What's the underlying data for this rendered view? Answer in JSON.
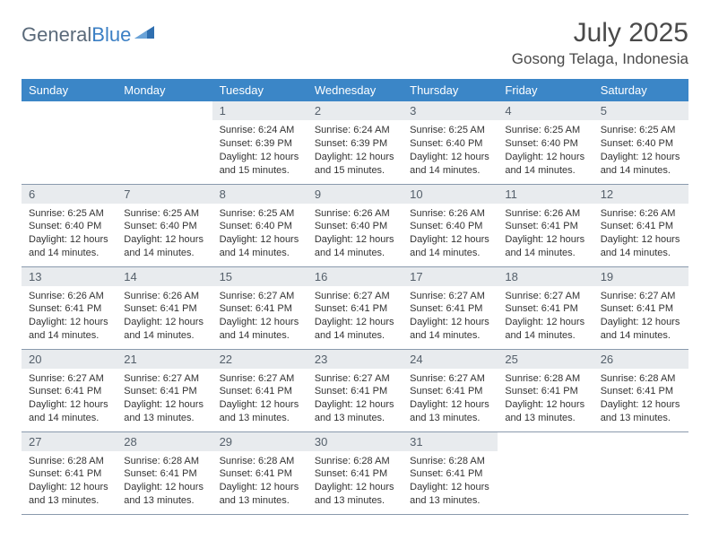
{
  "brand": {
    "part1": "General",
    "part2": "Blue"
  },
  "colors": {
    "header_bg": "#3b86c7",
    "header_text": "#ffffff",
    "daynum_bg": "#e8ebee",
    "daynum_text": "#55606b",
    "border": "#8a9aad",
    "title_text": "#4a4a4a",
    "body_text": "#333333"
  },
  "typography": {
    "title_fontsize": 30,
    "location_fontsize": 17,
    "weekday_fontsize": 13,
    "daynum_fontsize": 13,
    "body_fontsize": 11
  },
  "title": "July 2025",
  "location": "Gosong Telaga, Indonesia",
  "weekdays": [
    "Sunday",
    "Monday",
    "Tuesday",
    "Wednesday",
    "Thursday",
    "Friday",
    "Saturday"
  ],
  "weeks": [
    [
      {
        "n": "",
        "sunrise": "",
        "sunset": "",
        "daylight": ""
      },
      {
        "n": "",
        "sunrise": "",
        "sunset": "",
        "daylight": ""
      },
      {
        "n": "1",
        "sunrise": "Sunrise: 6:24 AM",
        "sunset": "Sunset: 6:39 PM",
        "daylight": "Daylight: 12 hours and 15 minutes."
      },
      {
        "n": "2",
        "sunrise": "Sunrise: 6:24 AM",
        "sunset": "Sunset: 6:39 PM",
        "daylight": "Daylight: 12 hours and 15 minutes."
      },
      {
        "n": "3",
        "sunrise": "Sunrise: 6:25 AM",
        "sunset": "Sunset: 6:40 PM",
        "daylight": "Daylight: 12 hours and 14 minutes."
      },
      {
        "n": "4",
        "sunrise": "Sunrise: 6:25 AM",
        "sunset": "Sunset: 6:40 PM",
        "daylight": "Daylight: 12 hours and 14 minutes."
      },
      {
        "n": "5",
        "sunrise": "Sunrise: 6:25 AM",
        "sunset": "Sunset: 6:40 PM",
        "daylight": "Daylight: 12 hours and 14 minutes."
      }
    ],
    [
      {
        "n": "6",
        "sunrise": "Sunrise: 6:25 AM",
        "sunset": "Sunset: 6:40 PM",
        "daylight": "Daylight: 12 hours and 14 minutes."
      },
      {
        "n": "7",
        "sunrise": "Sunrise: 6:25 AM",
        "sunset": "Sunset: 6:40 PM",
        "daylight": "Daylight: 12 hours and 14 minutes."
      },
      {
        "n": "8",
        "sunrise": "Sunrise: 6:25 AM",
        "sunset": "Sunset: 6:40 PM",
        "daylight": "Daylight: 12 hours and 14 minutes."
      },
      {
        "n": "9",
        "sunrise": "Sunrise: 6:26 AM",
        "sunset": "Sunset: 6:40 PM",
        "daylight": "Daylight: 12 hours and 14 minutes."
      },
      {
        "n": "10",
        "sunrise": "Sunrise: 6:26 AM",
        "sunset": "Sunset: 6:40 PM",
        "daylight": "Daylight: 12 hours and 14 minutes."
      },
      {
        "n": "11",
        "sunrise": "Sunrise: 6:26 AM",
        "sunset": "Sunset: 6:41 PM",
        "daylight": "Daylight: 12 hours and 14 minutes."
      },
      {
        "n": "12",
        "sunrise": "Sunrise: 6:26 AM",
        "sunset": "Sunset: 6:41 PM",
        "daylight": "Daylight: 12 hours and 14 minutes."
      }
    ],
    [
      {
        "n": "13",
        "sunrise": "Sunrise: 6:26 AM",
        "sunset": "Sunset: 6:41 PM",
        "daylight": "Daylight: 12 hours and 14 minutes."
      },
      {
        "n": "14",
        "sunrise": "Sunrise: 6:26 AM",
        "sunset": "Sunset: 6:41 PM",
        "daylight": "Daylight: 12 hours and 14 minutes."
      },
      {
        "n": "15",
        "sunrise": "Sunrise: 6:27 AM",
        "sunset": "Sunset: 6:41 PM",
        "daylight": "Daylight: 12 hours and 14 minutes."
      },
      {
        "n": "16",
        "sunrise": "Sunrise: 6:27 AM",
        "sunset": "Sunset: 6:41 PM",
        "daylight": "Daylight: 12 hours and 14 minutes."
      },
      {
        "n": "17",
        "sunrise": "Sunrise: 6:27 AM",
        "sunset": "Sunset: 6:41 PM",
        "daylight": "Daylight: 12 hours and 14 minutes."
      },
      {
        "n": "18",
        "sunrise": "Sunrise: 6:27 AM",
        "sunset": "Sunset: 6:41 PM",
        "daylight": "Daylight: 12 hours and 14 minutes."
      },
      {
        "n": "19",
        "sunrise": "Sunrise: 6:27 AM",
        "sunset": "Sunset: 6:41 PM",
        "daylight": "Daylight: 12 hours and 14 minutes."
      }
    ],
    [
      {
        "n": "20",
        "sunrise": "Sunrise: 6:27 AM",
        "sunset": "Sunset: 6:41 PM",
        "daylight": "Daylight: 12 hours and 14 minutes."
      },
      {
        "n": "21",
        "sunrise": "Sunrise: 6:27 AM",
        "sunset": "Sunset: 6:41 PM",
        "daylight": "Daylight: 12 hours and 13 minutes."
      },
      {
        "n": "22",
        "sunrise": "Sunrise: 6:27 AM",
        "sunset": "Sunset: 6:41 PM",
        "daylight": "Daylight: 12 hours and 13 minutes."
      },
      {
        "n": "23",
        "sunrise": "Sunrise: 6:27 AM",
        "sunset": "Sunset: 6:41 PM",
        "daylight": "Daylight: 12 hours and 13 minutes."
      },
      {
        "n": "24",
        "sunrise": "Sunrise: 6:27 AM",
        "sunset": "Sunset: 6:41 PM",
        "daylight": "Daylight: 12 hours and 13 minutes."
      },
      {
        "n": "25",
        "sunrise": "Sunrise: 6:28 AM",
        "sunset": "Sunset: 6:41 PM",
        "daylight": "Daylight: 12 hours and 13 minutes."
      },
      {
        "n": "26",
        "sunrise": "Sunrise: 6:28 AM",
        "sunset": "Sunset: 6:41 PM",
        "daylight": "Daylight: 12 hours and 13 minutes."
      }
    ],
    [
      {
        "n": "27",
        "sunrise": "Sunrise: 6:28 AM",
        "sunset": "Sunset: 6:41 PM",
        "daylight": "Daylight: 12 hours and 13 minutes."
      },
      {
        "n": "28",
        "sunrise": "Sunrise: 6:28 AM",
        "sunset": "Sunset: 6:41 PM",
        "daylight": "Daylight: 12 hours and 13 minutes."
      },
      {
        "n": "29",
        "sunrise": "Sunrise: 6:28 AM",
        "sunset": "Sunset: 6:41 PM",
        "daylight": "Daylight: 12 hours and 13 minutes."
      },
      {
        "n": "30",
        "sunrise": "Sunrise: 6:28 AM",
        "sunset": "Sunset: 6:41 PM",
        "daylight": "Daylight: 12 hours and 13 minutes."
      },
      {
        "n": "31",
        "sunrise": "Sunrise: 6:28 AM",
        "sunset": "Sunset: 6:41 PM",
        "daylight": "Daylight: 12 hours and 13 minutes."
      },
      {
        "n": "",
        "sunrise": "",
        "sunset": "",
        "daylight": ""
      },
      {
        "n": "",
        "sunrise": "",
        "sunset": "",
        "daylight": ""
      }
    ]
  ]
}
